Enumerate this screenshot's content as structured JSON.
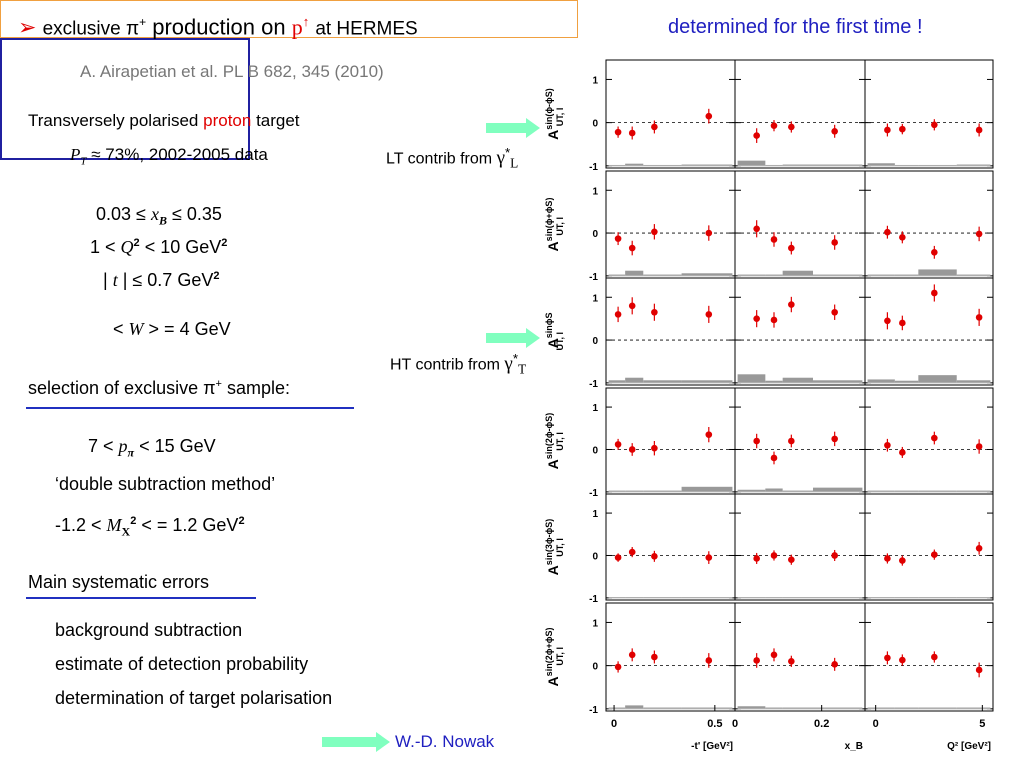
{
  "header": {
    "bullet": "➢",
    "title_pre": "exclusive π",
    "title_sup": "+",
    "title_mid": "production on",
    "title_target": "p",
    "title_target_arrow": "↑",
    "title_post": "at HERMES",
    "tag": "determined for the first time !"
  },
  "reference": "A. Airapetian et al. PL B 682, 345 (2010)",
  "target": {
    "line1_pre": "Transversely polarised",
    "line1_red": "proton",
    "line1_post": "target",
    "pol_symbol": "P",
    "pol_sub": "T",
    "pol_text": "≈ 73%, 2002-2005 data"
  },
  "cuts": {
    "xb": "0.03 ≤",
    "xb_sym": "x",
    "xb_sub": "B",
    "xb_post": "≤ 0.35",
    "q2_pre": "1 <",
    "q2_sym": "Q",
    "q2_sup": "2",
    "q2_post": "< 10 GeV",
    "q2_post_sup": "2",
    "t_pre": "|",
    "t_sym": "t",
    "t_post": "| ≤ 0.7 GeV",
    "t_post_sup": "2",
    "w_pre": "<",
    "w_sym": "W",
    "w_post": "> = 4 GeV"
  },
  "selection": {
    "heading_pre": "selection of exclusive π",
    "heading_sup": "+",
    "heading_post": "sample:",
    "p_pre": "7 <",
    "p_sym": "p",
    "p_sub": "π",
    "p_post": "< 15 GeV",
    "method": "‘double subtraction method’",
    "mx_pre": "-1.2 <",
    "mx_sym": "M",
    "mx_sub": "X",
    "mx_sup": "2",
    "mx_post": "<  = 1.2 GeV",
    "mx_post_sup": "2"
  },
  "systematics": {
    "heading": "Main systematic errors",
    "items": [
      "background subtraction",
      "estimate of detection probability",
      "determination of target polarisation"
    ]
  },
  "contrib": {
    "lt_pre": "LT contrib from",
    "lt_sym": "γ",
    "lt_sup": "*",
    "lt_sub": "L",
    "ht_pre": "HT contrib from",
    "ht_sym": "γ",
    "ht_sup": "*",
    "ht_sub": "T"
  },
  "footer": "W.-D. Nowak",
  "colors": {
    "arrow": "#80ffbf",
    "points": "#e00000",
    "band": "#999999",
    "accent_blue": "#2020c0"
  },
  "chart_data": {
    "type": "scatter",
    "grid_rows": 6,
    "grid_cols": 3,
    "columns": [
      {
        "xlabel": "-t' [GeV²]",
        "xlim": [
          -0.04,
          0.6
        ],
        "ticks": [
          0,
          0.5
        ],
        "tick_labels": [
          "0",
          "0.5"
        ]
      },
      {
        "xlabel": "x_B",
        "xlim": [
          0.0,
          0.3
        ],
        "ticks": [
          0,
          0.2
        ],
        "tick_labels": [
          "0",
          "0.2"
        ]
      },
      {
        "xlabel": "Q² [GeV²]",
        "xlim": [
          -0.5,
          5.5
        ],
        "ticks": [
          0,
          5
        ],
        "tick_labels": [
          "0",
          "5"
        ]
      }
    ],
    "ylim": [
      -1.05,
      1.45
    ],
    "y_ticks": [
      -1,
      0,
      1
    ],
    "y_tick_labels": [
      "-1",
      "0",
      "1"
    ],
    "x_values": [
      [
        0.02,
        0.09,
        0.2,
        0.47
      ],
      [
        0.05,
        0.09,
        0.13,
        0.23
      ],
      [
        0.55,
        1.25,
        2.75,
        4.85
      ]
    ],
    "rows": [
      {
        "label_sup": "sin(ϕ-ϕS)",
        "label_main": "A",
        "label_sub": "UT, l",
        "values": [
          [
            -0.22,
            -0.24,
            -0.1,
            0.15
          ],
          [
            -0.3,
            -0.07,
            -0.1,
            -0.2
          ],
          [
            -0.17,
            -0.15,
            -0.05,
            -0.17
          ]
        ],
        "errors": [
          [
            0.13,
            0.15,
            0.15,
            0.17
          ],
          [
            0.17,
            0.13,
            0.13,
            0.15
          ],
          [
            0.15,
            0.12,
            0.13,
            0.15
          ]
        ],
        "bands": [
          [
            0.02,
            0.05,
            0.02,
            0.03
          ],
          [
            0.12,
            0.02,
            0.03,
            0.03
          ],
          [
            0.06,
            0.02,
            0.02,
            0.03
          ]
        ]
      },
      {
        "label_sup": "sin(ϕ+ϕS)",
        "label_main": "A",
        "label_sub": "UT, l",
        "values": [
          [
            -0.13,
            -0.35,
            0.03,
            0.0
          ],
          [
            0.1,
            -0.15,
            -0.35,
            -0.22
          ],
          [
            0.02,
            -0.1,
            -0.45,
            -0.02
          ]
        ],
        "errors": [
          [
            0.15,
            0.17,
            0.18,
            0.18
          ],
          [
            0.2,
            0.17,
            0.15,
            0.17
          ],
          [
            0.15,
            0.14,
            0.15,
            0.17
          ]
        ],
        "bands": [
          [
            0.03,
            0.12,
            0.03,
            0.06
          ],
          [
            0.03,
            0.03,
            0.12,
            0.03
          ],
          [
            0.03,
            0.03,
            0.15,
            0.03
          ]
        ]
      },
      {
        "label_sup": "sinϕS",
        "label_main": "A",
        "label_sub": "UT, l",
        "values": [
          [
            0.6,
            0.8,
            0.65,
            0.6
          ],
          [
            0.5,
            0.47,
            0.83,
            0.65
          ],
          [
            0.45,
            0.4,
            1.1,
            0.53
          ]
        ],
        "errors": [
          [
            0.18,
            0.2,
            0.2,
            0.2
          ],
          [
            0.2,
            0.18,
            0.18,
            0.18
          ],
          [
            0.2,
            0.17,
            0.2,
            0.2
          ]
        ],
        "bands": [
          [
            0.06,
            0.12,
            0.06,
            0.06
          ],
          [
            0.2,
            0.05,
            0.12,
            0.06
          ],
          [
            0.08,
            0.05,
            0.18,
            0.06
          ]
        ]
      },
      {
        "label_sup": "sin(2ϕ-ϕS)",
        "label_main": "A",
        "label_sub": "UT, l",
        "values": [
          [
            0.12,
            0.0,
            0.03,
            0.35
          ],
          [
            0.2,
            -0.2,
            0.2,
            0.25
          ],
          [
            0.1,
            -0.07,
            0.27,
            0.07
          ]
        ],
        "errors": [
          [
            0.13,
            0.15,
            0.17,
            0.18
          ],
          [
            0.17,
            0.15,
            0.15,
            0.17
          ],
          [
            0.15,
            0.13,
            0.15,
            0.17
          ]
        ],
        "bands": [
          [
            0.03,
            0.03,
            0.03,
            0.12
          ],
          [
            0.05,
            0.08,
            0.03,
            0.1
          ],
          [
            0.03,
            0.03,
            0.03,
            0.03
          ]
        ]
      },
      {
        "label_sup": "sin(3ϕ-ϕS)",
        "label_main": "A",
        "label_sub": "UT, l",
        "values": [
          [
            -0.05,
            0.08,
            -0.02,
            -0.05
          ],
          [
            -0.07,
            0.0,
            -0.1,
            0.0
          ],
          [
            -0.07,
            -0.12,
            0.02,
            0.17
          ]
        ],
        "errors": [
          [
            0.1,
            0.12,
            0.13,
            0.15
          ],
          [
            0.13,
            0.12,
            0.12,
            0.13
          ],
          [
            0.12,
            0.12,
            0.12,
            0.15
          ]
        ],
        "bands": [
          [
            0.02,
            0.02,
            0.02,
            0.02
          ],
          [
            0.02,
            0.02,
            0.02,
            0.02
          ],
          [
            0.02,
            0.02,
            0.02,
            0.02
          ]
        ]
      },
      {
        "label_sup": "sin(2ϕ+ϕS)",
        "label_main": "A",
        "label_sub": "UT, l",
        "values": [
          [
            -0.03,
            0.25,
            0.2,
            0.12
          ],
          [
            0.12,
            0.25,
            0.1,
            0.03
          ],
          [
            0.18,
            0.13,
            0.2,
            -0.1
          ]
        ],
        "errors": [
          [
            0.13,
            0.15,
            0.15,
            0.17
          ],
          [
            0.17,
            0.15,
            0.13,
            0.15
          ],
          [
            0.15,
            0.13,
            0.13,
            0.17
          ]
        ],
        "bands": [
          [
            0.03,
            0.08,
            0.03,
            0.03
          ],
          [
            0.06,
            0.03,
            0.03,
            0.03
          ],
          [
            0.03,
            0.03,
            0.03,
            0.03
          ]
        ]
      }
    ]
  }
}
